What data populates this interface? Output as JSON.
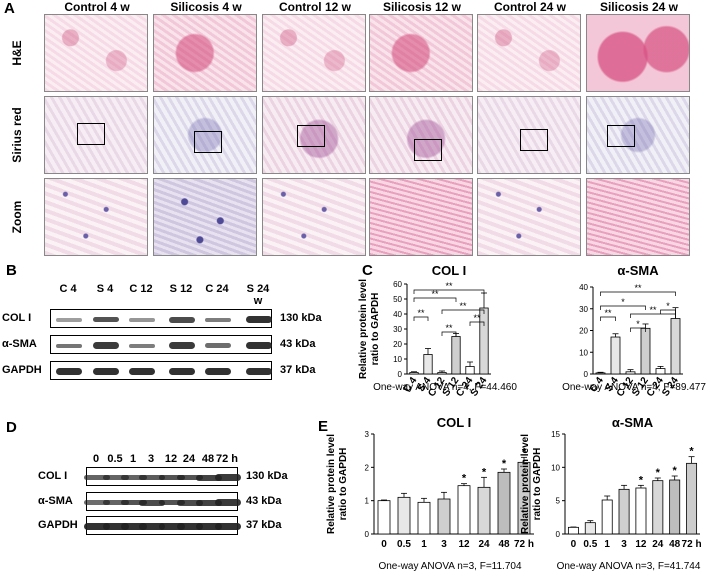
{
  "panels": {
    "A": "A",
    "B": "B",
    "C": "C",
    "D": "D",
    "E": "E"
  },
  "panelA": {
    "columns": [
      "Control 4 w",
      "Silicosis 4 w",
      "Control 12 w",
      "Silicosis 12 w",
      "Control 24 w",
      "Silicosis 24 w"
    ],
    "rows": [
      "H&E",
      "Sirius red",
      "Zoom"
    ]
  },
  "panelB": {
    "lanes": [
      "C 4",
      "S 4",
      "C 12",
      "S 12",
      "C 24",
      "S 24 w"
    ],
    "blots": [
      {
        "name": "COL I",
        "kda": "130 kDa"
      },
      {
        "name": "α-SMA",
        "kda": "43 kDa"
      },
      {
        "name": "GAPDH",
        "kda": "37 kDa"
      }
    ]
  },
  "panelD": {
    "lanes": [
      "0",
      "0.5",
      "1",
      "3",
      "12",
      "24",
      "48",
      "72 h"
    ],
    "blots": [
      {
        "name": "COL I",
        "kda": "130 kDa"
      },
      {
        "name": "α-SMA",
        "kda": "43 kDa"
      },
      {
        "name": "GAPDH",
        "kda": "37 kDa"
      }
    ]
  },
  "chart_data": [
    {
      "type": "bar",
      "title": "COL I",
      "ylabel": "Relative protein level ratio to GAPDH",
      "categories": [
        "C 4",
        "S 4",
        "C 12",
        "S 12",
        "C 24",
        "S 24"
      ],
      "values": [
        1,
        13,
        1,
        25,
        5,
        44
      ],
      "errors": [
        0.5,
        4,
        1,
        2,
        3,
        10
      ],
      "ylim": [
        0,
        60
      ],
      "yticks": [
        0,
        10,
        20,
        30,
        40,
        50,
        60
      ],
      "annotation": "One-way ANOVA n=4, F=44.460",
      "significance": [
        "**",
        "**",
        "**",
        "**",
        "**",
        "**"
      ]
    },
    {
      "type": "bar",
      "title": "α-SMA",
      "ylabel": "",
      "categories": [
        "C 4",
        "S 4",
        "C 12",
        "S 12",
        "C 24",
        "S 24"
      ],
      "values": [
        0.5,
        17,
        1,
        21,
        2.5,
        25.5
      ],
      "errors": [
        0.3,
        1.5,
        1,
        2,
        1,
        5
      ],
      "ylim": [
        0,
        40
      ],
      "yticks": [
        0,
        10,
        20,
        30,
        40
      ],
      "annotation": "One-way ANOVA n=4, F=89.477",
      "significance": [
        "**",
        "*",
        "**",
        "*",
        "**",
        "*"
      ]
    },
    {
      "type": "bar",
      "title": "COL I",
      "ylabel": "Relative protein level ratio to GAPDH",
      "categories": [
        "0",
        "0.5",
        "1",
        "3",
        "12",
        "24",
        "48",
        "72 h"
      ],
      "values": [
        1.0,
        1.1,
        0.95,
        1.05,
        1.45,
        1.4,
        1.85,
        2.15
      ],
      "errors": [
        0.02,
        0.12,
        0.12,
        0.2,
        0.06,
        0.3,
        0.1,
        0.15
      ],
      "ylim": [
        0,
        3
      ],
      "yticks": [
        0,
        1,
        2,
        3
      ],
      "annotation": "One-way ANOVA n=3, F=11.704",
      "stars": [
        "",
        "",
        "",
        "",
        "*",
        "*",
        "*",
        "*"
      ]
    },
    {
      "type": "bar",
      "title": "α-SMA",
      "ylabel": "Relative protein level ratio to GAPDH",
      "categories": [
        "0",
        "0.5",
        "1",
        "3",
        "12",
        "24",
        "48",
        "72 h"
      ],
      "values": [
        1.0,
        1.7,
        5.1,
        6.7,
        6.9,
        8.0,
        8.1,
        10.6
      ],
      "errors": [
        0.05,
        0.3,
        0.6,
        0.6,
        0.4,
        0.4,
        0.6,
        1.0
      ],
      "ylim": [
        0,
        15
      ],
      "yticks": [
        0,
        5,
        10,
        15
      ],
      "annotation": "One-way ANOVA n=3, F=41.744",
      "stars": [
        "",
        "",
        "",
        "",
        "*",
        "*",
        "*",
        "*"
      ]
    }
  ]
}
